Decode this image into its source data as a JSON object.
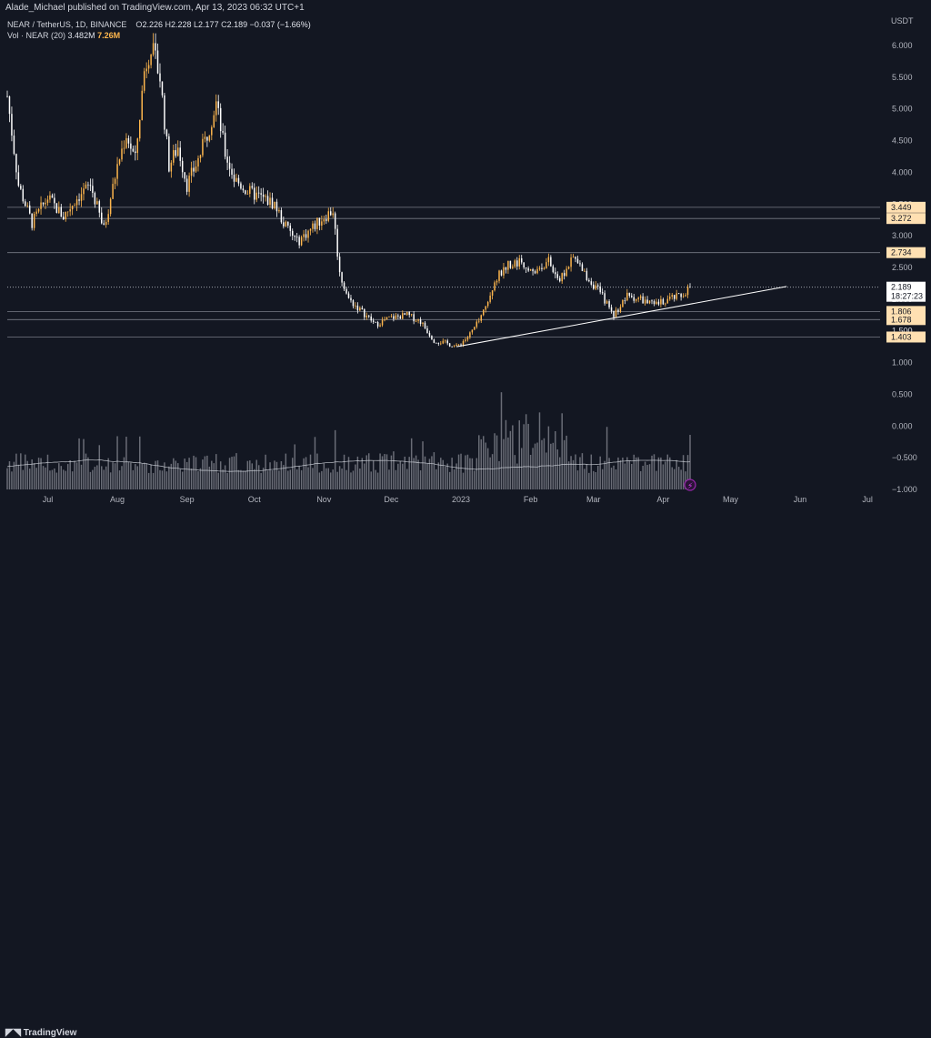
{
  "header": {
    "publisher": "Alade_Michael published on TradingView.com, Apr 13, 2023 06:32 UTC+1"
  },
  "legend": {
    "symbol": "NEAR / TetherUS, 1D, BINANCE",
    "o_label": "O",
    "o": "2.226",
    "h_label": "H",
    "h": "2.228",
    "l_label": "L",
    "l": "2.177",
    "c_label": "C",
    "c": "2.189",
    "change": "−0.037 (−1.66%)",
    "vol_label": "Vol · NEAR (20)",
    "vol_ma": "3.482M",
    "vol_value": "7.26M"
  },
  "footer": {
    "brand": "TradingView"
  },
  "colors": {
    "background": "#131722",
    "candle_up": "#ffb74d",
    "candle_down": "#ffffff",
    "volume": "#b2b5be",
    "tag_bg": "#ffe0b2",
    "current_tag_bg": "#ffffff"
  },
  "chart_data": {
    "type": "candlestick",
    "symbol": "NEAR / TetherUS",
    "interval": "1D",
    "exchange": "BINANCE",
    "currency": "USDT",
    "y_ticks": [
      "6.000",
      "5.500",
      "5.000",
      "4.500",
      "4.000",
      "3.500",
      "3.000",
      "2.500",
      "2.000",
      "1.500",
      "1.000",
      "0.500",
      "0.000",
      "−0.500",
      "−1.000"
    ],
    "y_tick_values": [
      6.0,
      5.5,
      5.0,
      4.5,
      4.0,
      3.5,
      3.0,
      2.5,
      2.0,
      1.5,
      1.0,
      0.5,
      0.0,
      -0.5,
      -1.0
    ],
    "ylim": [
      -1.0,
      6.4
    ],
    "x_ticks": [
      "Jul",
      "Aug",
      "Sep",
      "Oct",
      "Nov",
      "Dec",
      "2023",
      "Feb",
      "Mar",
      "Apr",
      "May",
      "Jun",
      "Jul"
    ],
    "date_range": [
      "2022-06-13",
      "2023-04-13"
    ],
    "price_path": [
      [
        "2022-06-13",
        5.2
      ],
      [
        "2022-06-18",
        3.8
      ],
      [
        "2022-06-24",
        3.2
      ],
      [
        "2022-07-01",
        3.6
      ],
      [
        "2022-07-08",
        3.3
      ],
      [
        "2022-07-14",
        3.6
      ],
      [
        "2022-07-20",
        3.8
      ],
      [
        "2022-07-26",
        3.1
      ],
      [
        "2022-08-01",
        4.1
      ],
      [
        "2022-08-05",
        4.6
      ],
      [
        "2022-08-09",
        4.2
      ],
      [
        "2022-08-13",
        5.6
      ],
      [
        "2022-08-16",
        6.0
      ],
      [
        "2022-08-20",
        5.5
      ],
      [
        "2022-08-24",
        4.1
      ],
      [
        "2022-08-28",
        4.4
      ],
      [
        "2022-09-01",
        3.8
      ],
      [
        "2022-09-06",
        4.2
      ],
      [
        "2022-09-10",
        4.6
      ],
      [
        "2022-09-14",
        5.1
      ],
      [
        "2022-09-18",
        4.3
      ],
      [
        "2022-09-22",
        3.9
      ],
      [
        "2022-09-28",
        3.7
      ],
      [
        "2022-10-04",
        3.6
      ],
      [
        "2022-10-10",
        3.5
      ],
      [
        "2022-10-14",
        3.2
      ],
      [
        "2022-10-20",
        2.9
      ],
      [
        "2022-10-26",
        3.1
      ],
      [
        "2022-11-01",
        3.3
      ],
      [
        "2022-11-05",
        3.4
      ],
      [
        "2022-11-08",
        2.4
      ],
      [
        "2022-11-12",
        2.0
      ],
      [
        "2022-11-18",
        1.8
      ],
      [
        "2022-11-24",
        1.6
      ],
      [
        "2022-11-30",
        1.7
      ],
      [
        "2022-12-08",
        1.75
      ],
      [
        "2022-12-14",
        1.65
      ],
      [
        "2022-12-20",
        1.35
      ],
      [
        "2022-12-26",
        1.3
      ],
      [
        "2022-12-30",
        1.25
      ],
      [
        "2023-01-04",
        1.4
      ],
      [
        "2023-01-10",
        1.7
      ],
      [
        "2023-01-16",
        2.3
      ],
      [
        "2023-01-22",
        2.55
      ],
      [
        "2023-01-28",
        2.6
      ],
      [
        "2023-02-03",
        2.45
      ],
      [
        "2023-02-09",
        2.6
      ],
      [
        "2023-02-14",
        2.3
      ],
      [
        "2023-02-20",
        2.65
      ],
      [
        "2023-02-26",
        2.35
      ],
      [
        "2023-03-04",
        2.1
      ],
      [
        "2023-03-10",
        1.75
      ],
      [
        "2023-03-16",
        2.05
      ],
      [
        "2023-03-22",
        2.0
      ],
      [
        "2023-03-28",
        1.9
      ],
      [
        "2023-04-03",
        2.0
      ],
      [
        "2023-04-09",
        2.05
      ],
      [
        "2023-04-13",
        2.189
      ]
    ],
    "horizontal_levels": [
      {
        "label": "3.449",
        "value": 3.449
      },
      {
        "label": "3.272",
        "value": 3.272
      },
      {
        "label": "2.734",
        "value": 2.734
      },
      {
        "label": "1.806",
        "value": 1.806
      },
      {
        "label": "1.678",
        "value": 1.678
      },
      {
        "label": "1.403",
        "value": 1.403
      }
    ],
    "trendline": {
      "from": [
        "2022-12-30",
        1.25
      ],
      "to": [
        "2023-05-26",
        2.2
      ]
    },
    "current_price": {
      "label": "2.189",
      "countdown": "18:27:23",
      "value": 2.189
    },
    "partially_hidden_label": "1.500",
    "volume": {
      "series": "Vol · NEAR (20)",
      "ma": "3.482M",
      "last": "7.26M"
    },
    "grid": false
  }
}
